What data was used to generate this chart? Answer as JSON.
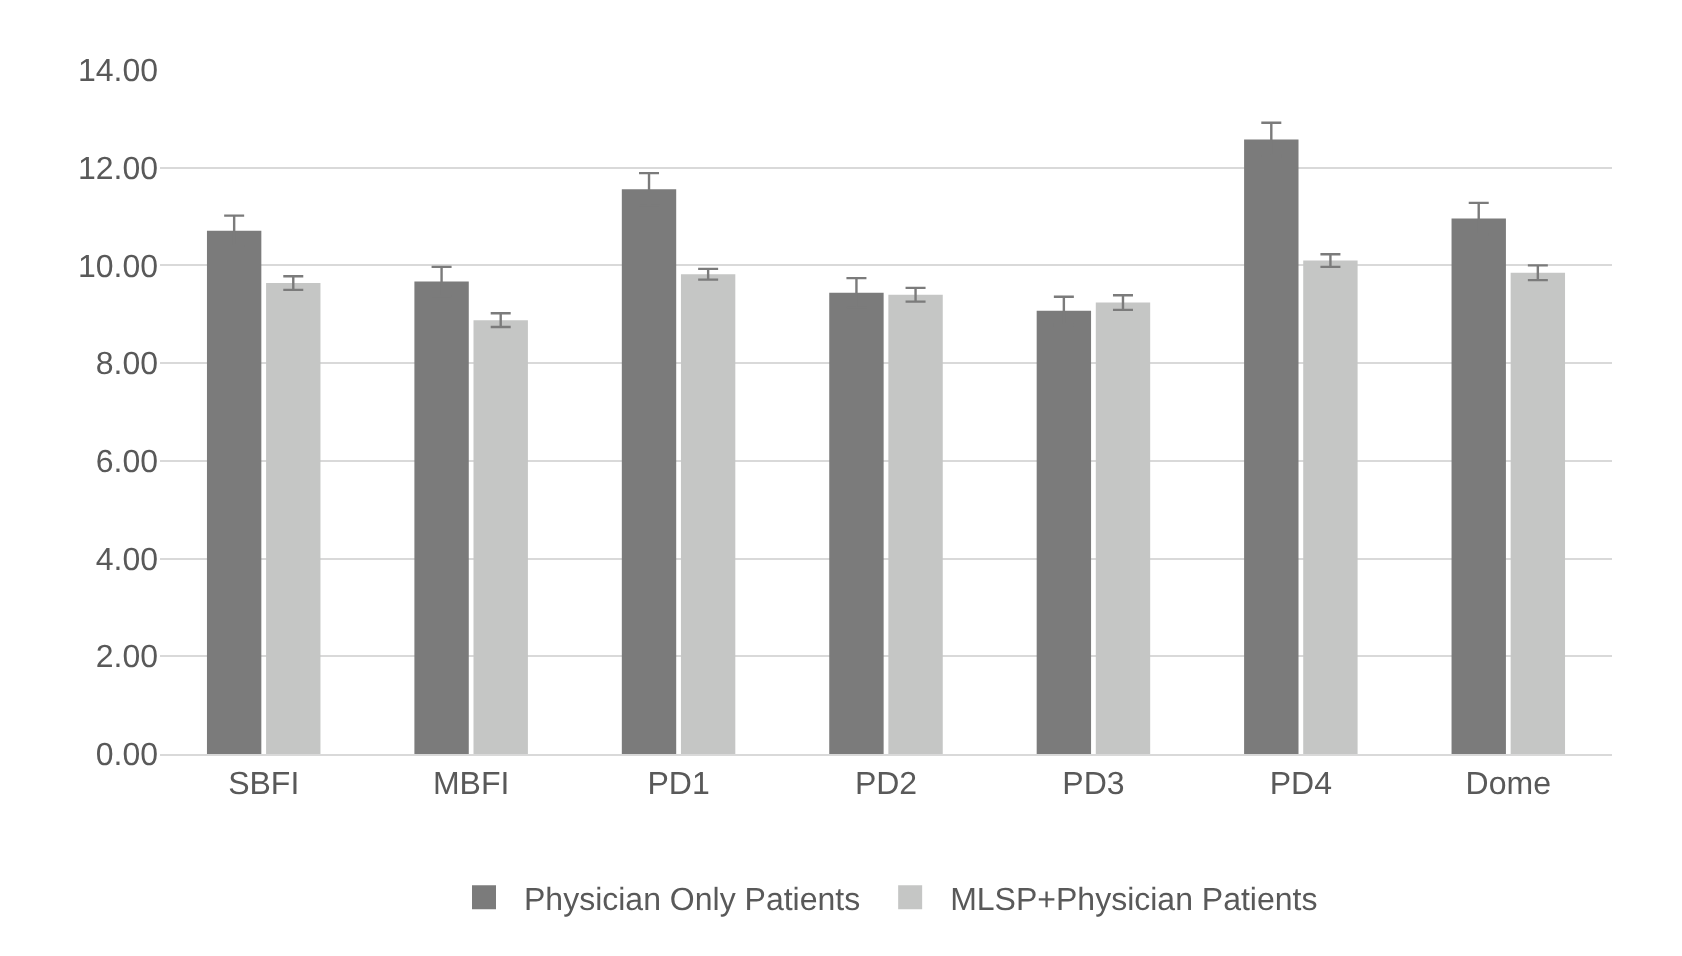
{
  "chart_data": {
    "type": "bar",
    "categories": [
      "SBFI",
      "MBFI",
      "PD1",
      "PD2",
      "PD3",
      "PD4",
      "Dome"
    ],
    "series": [
      {
        "name": "Physician Only Patients",
        "color": "#7b7b7b",
        "values": [
          10.71,
          9.67,
          11.56,
          9.44,
          9.07,
          12.58,
          10.96
        ],
        "errors": [
          0.31,
          0.3,
          0.33,
          0.3,
          0.29,
          0.34,
          0.32
        ]
      },
      {
        "name": "MLSP+Physician Patients",
        "color": "#c5c6c5",
        "values": [
          9.64,
          8.88,
          9.82,
          9.4,
          9.24,
          10.1,
          9.85
        ],
        "errors": [
          0.14,
          0.14,
          0.11,
          0.14,
          0.15,
          0.13,
          0.15
        ]
      }
    ],
    "ylim": [
      0,
      14
    ],
    "yticks": [
      {
        "value": 0,
        "label": "0.00"
      },
      {
        "value": 2,
        "label": "2.00"
      },
      {
        "value": 4,
        "label": "4.00"
      },
      {
        "value": 6,
        "label": "6.00"
      },
      {
        "value": 8,
        "label": "8.00"
      },
      {
        "value": 10,
        "label": "10.00"
      },
      {
        "value": 12,
        "label": "12.00"
      },
      {
        "value": 14,
        "label": "14.00"
      }
    ],
    "grid": "y",
    "legend": "bottom"
  }
}
